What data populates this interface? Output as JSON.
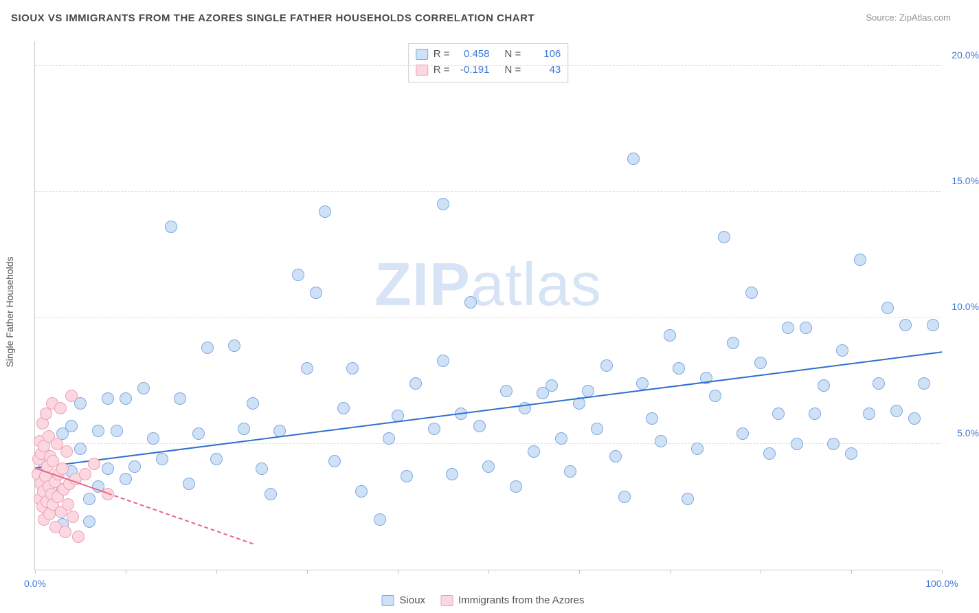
{
  "title": "SIOUX VS IMMIGRANTS FROM THE AZORES SINGLE FATHER HOUSEHOLDS CORRELATION CHART",
  "source": "Source: ZipAtlas.com",
  "ylabel": "Single Father Households",
  "watermark": {
    "zip": "ZIP",
    "atlas": "atlas",
    "color": "#d6e4f5"
  },
  "colors": {
    "title": "#4a4a4a",
    "source": "#909090",
    "axis": "#c8c8c8",
    "grid": "#dddddd",
    "tick_blue": "#3d78d6",
    "tick_label": "#555555"
  },
  "chart": {
    "type": "scatter",
    "xlim": [
      0,
      100
    ],
    "ylim": [
      0,
      21
    ],
    "xticks": [
      0,
      10,
      20,
      30,
      40,
      50,
      60,
      70,
      80,
      90,
      100
    ],
    "xtick_labels_shown": {
      "0": "0.0%",
      "100": "100.0%"
    },
    "yticks": [
      5,
      10,
      15,
      20
    ],
    "ytick_labels": [
      "5.0%",
      "10.0%",
      "15.0%",
      "20.0%"
    ],
    "marker_radius": 9,
    "marker_stroke_width": 1.2,
    "series": [
      {
        "name": "Sioux",
        "fill": "#cfe1f7",
        "stroke": "#7fa8de",
        "line_color": "#2f6fd0",
        "r_value": "0.458",
        "n_value": "106",
        "trend": {
          "x1": 0,
          "y1": 4.0,
          "x2": 100,
          "y2": 8.6,
          "dash_after_x": 100
        },
        "points": [
          [
            1,
            4.0
          ],
          [
            1,
            4.6
          ],
          [
            2,
            2.8
          ],
          [
            2,
            3.6
          ],
          [
            3,
            3.2
          ],
          [
            3,
            5.4
          ],
          [
            3,
            1.8
          ],
          [
            4,
            5.7
          ],
          [
            4,
            3.9
          ],
          [
            5,
            6.6
          ],
          [
            5,
            4.8
          ],
          [
            6,
            2.8
          ],
          [
            7,
            5.5
          ],
          [
            7,
            3.3
          ],
          [
            8,
            6.8
          ],
          [
            8,
            4.0
          ],
          [
            9,
            5.5
          ],
          [
            10,
            6.8
          ],
          [
            10,
            3.6
          ],
          [
            11,
            4.1
          ],
          [
            12,
            7.2
          ],
          [
            13,
            5.2
          ],
          [
            14,
            4.4
          ],
          [
            15,
            13.6
          ],
          [
            16,
            6.8
          ],
          [
            17,
            3.4
          ],
          [
            18,
            5.4
          ],
          [
            19,
            8.8
          ],
          [
            20,
            4.4
          ],
          [
            22,
            8.9
          ],
          [
            23,
            5.6
          ],
          [
            24,
            6.6
          ],
          [
            25,
            4.0
          ],
          [
            26,
            3.0
          ],
          [
            27,
            5.5
          ],
          [
            29,
            11.7
          ],
          [
            30,
            8.0
          ],
          [
            31,
            11.0
          ],
          [
            32,
            14.2
          ],
          [
            33,
            4.3
          ],
          [
            34,
            6.4
          ],
          [
            35,
            8.0
          ],
          [
            36,
            3.1
          ],
          [
            38,
            2.0
          ],
          [
            39,
            5.2
          ],
          [
            40,
            6.1
          ],
          [
            41,
            3.7
          ],
          [
            42,
            7.4
          ],
          [
            44,
            5.6
          ],
          [
            45,
            14.5
          ],
          [
            45,
            8.3
          ],
          [
            46,
            3.8
          ],
          [
            47,
            6.2
          ],
          [
            48,
            10.6
          ],
          [
            49,
            5.7
          ],
          [
            50,
            4.1
          ],
          [
            52,
            7.1
          ],
          [
            53,
            3.3
          ],
          [
            54,
            6.4
          ],
          [
            55,
            4.7
          ],
          [
            56,
            7.0
          ],
          [
            57,
            7.3
          ],
          [
            58,
            5.2
          ],
          [
            59,
            3.9
          ],
          [
            60,
            6.6
          ],
          [
            61,
            7.1
          ],
          [
            62,
            5.6
          ],
          [
            63,
            8.1
          ],
          [
            64,
            4.5
          ],
          [
            65,
            2.9
          ],
          [
            66,
            16.3
          ],
          [
            67,
            7.4
          ],
          [
            68,
            6.0
          ],
          [
            69,
            5.1
          ],
          [
            70,
            9.3
          ],
          [
            71,
            8.0
          ],
          [
            72,
            2.8
          ],
          [
            73,
            4.8
          ],
          [
            74,
            7.6
          ],
          [
            75,
            6.9
          ],
          [
            76,
            13.2
          ],
          [
            77,
            9.0
          ],
          [
            78,
            5.4
          ],
          [
            79,
            11.0
          ],
          [
            80,
            8.2
          ],
          [
            81,
            4.6
          ],
          [
            82,
            6.2
          ],
          [
            83,
            9.6
          ],
          [
            84,
            5.0
          ],
          [
            85,
            9.6
          ],
          [
            86,
            6.2
          ],
          [
            87,
            7.3
          ],
          [
            88,
            5.0
          ],
          [
            89,
            8.7
          ],
          [
            90,
            4.6
          ],
          [
            91,
            12.3
          ],
          [
            92,
            6.2
          ],
          [
            93,
            7.4
          ],
          [
            94,
            10.4
          ],
          [
            95,
            6.3
          ],
          [
            96,
            9.7
          ],
          [
            97,
            6.0
          ],
          [
            98,
            7.4
          ],
          [
            99,
            9.7
          ],
          [
            2,
            2.4
          ],
          [
            6,
            1.9
          ]
        ]
      },
      {
        "name": "Immigrants from the Azores",
        "fill": "#fbd7e0",
        "stroke": "#efa0b4",
        "line_color": "#e86a8a",
        "r_value": "-0.191",
        "n_value": "43",
        "trend": {
          "x1": 0,
          "y1": 4.0,
          "x2": 8,
          "y2": 3.0,
          "dash_after_x": 8,
          "dash_x2": 24,
          "dash_y2": 1.0
        },
        "points": [
          [
            0.3,
            3.8
          ],
          [
            0.4,
            4.4
          ],
          [
            0.5,
            2.8
          ],
          [
            0.5,
            5.1
          ],
          [
            0.6,
            3.4
          ],
          [
            0.7,
            4.6
          ],
          [
            0.8,
            2.5
          ],
          [
            0.8,
            5.8
          ],
          [
            0.9,
            3.1
          ],
          [
            1.0,
            4.9
          ],
          [
            1.0,
            2.0
          ],
          [
            1.1,
            3.7
          ],
          [
            1.2,
            6.2
          ],
          [
            1.3,
            2.7
          ],
          [
            1.4,
            4.1
          ],
          [
            1.5,
            3.3
          ],
          [
            1.5,
            5.3
          ],
          [
            1.6,
            2.2
          ],
          [
            1.7,
            4.5
          ],
          [
            1.8,
            3.0
          ],
          [
            1.9,
            6.6
          ],
          [
            2.0,
            2.6
          ],
          [
            2.0,
            4.3
          ],
          [
            2.2,
            3.5
          ],
          [
            2.3,
            1.7
          ],
          [
            2.4,
            5.0
          ],
          [
            2.5,
            2.9
          ],
          [
            2.6,
            3.8
          ],
          [
            2.8,
            6.4
          ],
          [
            2.9,
            2.3
          ],
          [
            3.0,
            4.0
          ],
          [
            3.2,
            3.2
          ],
          [
            3.3,
            1.5
          ],
          [
            3.5,
            4.7
          ],
          [
            3.6,
            2.6
          ],
          [
            3.8,
            3.4
          ],
          [
            4.0,
            6.9
          ],
          [
            4.2,
            2.1
          ],
          [
            4.5,
            3.6
          ],
          [
            4.8,
            1.3
          ],
          [
            5.5,
            3.8
          ],
          [
            6.5,
            4.2
          ],
          [
            8.0,
            3.0
          ]
        ]
      }
    ]
  },
  "stats_labels": {
    "R": "R =",
    "N": "N ="
  },
  "legend": {
    "items": [
      {
        "label": "Sioux",
        "fill": "#cfe1f7",
        "stroke": "#7fa8de"
      },
      {
        "label": "Immigrants from the Azores",
        "fill": "#fbd7e0",
        "stroke": "#efa0b4"
      }
    ]
  }
}
